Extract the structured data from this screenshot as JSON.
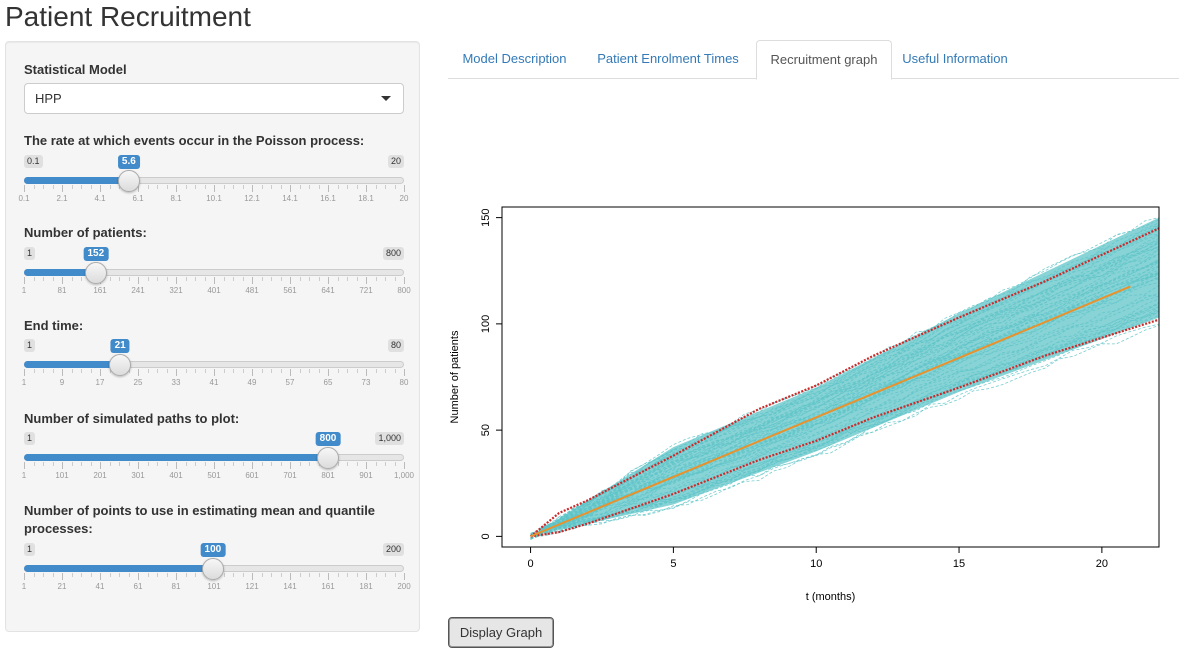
{
  "app": {
    "title": "Patient Recruitment"
  },
  "sidebar": {
    "model": {
      "label": "Statistical Model",
      "selected": "HPP"
    },
    "sliders": [
      {
        "id": "rate",
        "label": "The rate at which events occur in the Poisson process:",
        "min_label": "0.1",
        "max_label": "20",
        "value_label": "5.6",
        "fraction": 0.276,
        "tick_labels": [
          "0.1",
          "2.1",
          "4.1",
          "6.1",
          "8.1",
          "10.1",
          "12.1",
          "14.1",
          "16.1",
          "18.1",
          "20"
        ]
      },
      {
        "id": "patients",
        "label": "Number of patients:",
        "min_label": "1",
        "max_label": "800",
        "value_label": "152",
        "fraction": 0.189,
        "tick_labels": [
          "1",
          "81",
          "161",
          "241",
          "321",
          "401",
          "481",
          "561",
          "641",
          "721",
          "800"
        ]
      },
      {
        "id": "end_time",
        "label": "End time:",
        "min_label": "1",
        "max_label": "80",
        "value_label": "21",
        "fraction": 0.253,
        "tick_labels": [
          "1",
          "9",
          "17",
          "25",
          "33",
          "41",
          "49",
          "57",
          "65",
          "73",
          "80"
        ]
      },
      {
        "id": "paths",
        "label": "Number of simulated paths to plot:",
        "min_label": "1",
        "max_label": "1,000",
        "value_label": "800",
        "fraction": 0.8,
        "tick_labels": [
          "1",
          "101",
          "201",
          "301",
          "401",
          "501",
          "601",
          "701",
          "801",
          "901",
          "1,000"
        ]
      },
      {
        "id": "points",
        "label": "Number of points to use in estimating mean and quantile processes:",
        "min_label": "1",
        "max_label": "200",
        "value_label": "100",
        "fraction": 0.497,
        "tick_labels": [
          "1",
          "21",
          "41",
          "61",
          "81",
          "101",
          "121",
          "141",
          "161",
          "181",
          "200"
        ]
      }
    ]
  },
  "tabs": [
    {
      "label": "Model Description",
      "active": false
    },
    {
      "label": "Patient Enrolment Times",
      "active": false
    },
    {
      "label": "Recruitment graph",
      "active": true
    },
    {
      "label": "Useful Information",
      "active": false
    }
  ],
  "chart_data": {
    "type": "line",
    "xlabel": "t (months)",
    "ylabel": "Number of patients",
    "xlim": [
      -1,
      22
    ],
    "ylim": [
      -5,
      155
    ],
    "xticks": [
      0,
      5,
      10,
      15,
      20
    ],
    "yticks": [
      0,
      50,
      100,
      150
    ],
    "grid": false,
    "series": [
      {
        "role": "simulated-paths-band",
        "color": "#5fc4c8",
        "x": [
          0,
          5,
          10,
          15,
          22
        ],
        "lower": [
          0,
          15,
          40,
          68,
          103
        ],
        "upper": [
          0,
          42,
          70,
          105,
          150
        ]
      },
      {
        "role": "mean",
        "color": "#e8922e",
        "x": [
          0,
          21
        ],
        "y": [
          0,
          117.6
        ]
      },
      {
        "role": "upper-quantile",
        "color": "#cc2a2a",
        "x": [
          0,
          1,
          2,
          5,
          8,
          10,
          12,
          15,
          18,
          22
        ],
        "y": [
          0,
          11,
          17,
          38,
          60,
          71,
          85,
          103,
          120,
          145
        ]
      },
      {
        "role": "lower-quantile",
        "color": "#cc2a2a",
        "x": [
          0,
          1,
          2,
          5,
          8,
          10,
          12,
          15,
          18,
          22
        ],
        "y": [
          0,
          2,
          6,
          20,
          36,
          45,
          56,
          70,
          85,
          102
        ]
      }
    ]
  },
  "actions": {
    "display_label": "Display Graph"
  }
}
